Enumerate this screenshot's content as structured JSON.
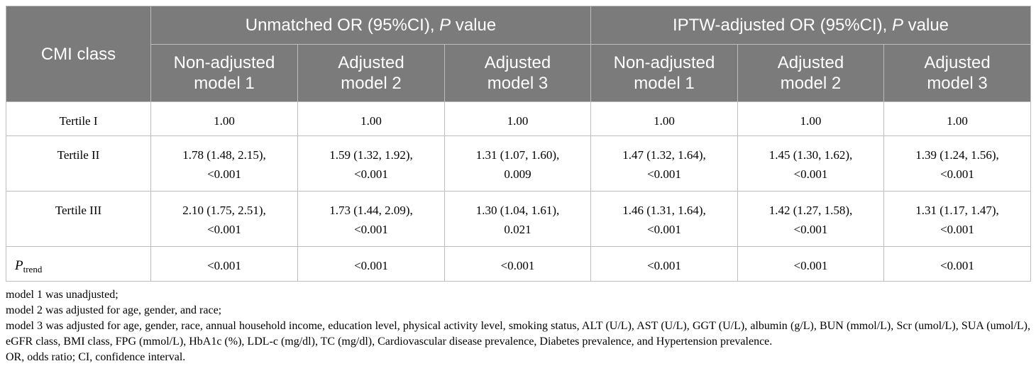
{
  "table": {
    "row_header": "CMI class",
    "groups": [
      {
        "prefix": "Unmatched OR (95%CI), ",
        "italic": "P",
        "suffix": " value"
      },
      {
        "prefix": "IPTW-adjusted OR (95%CI), ",
        "italic": "P",
        "suffix": " value"
      }
    ],
    "columns": [
      {
        "line1": "Non-adjusted",
        "line2": "model 1"
      },
      {
        "line1": "Adjusted",
        "line2": "model 2"
      },
      {
        "line1": "Adjusted",
        "line2": "model 3"
      },
      {
        "line1": "Non-adjusted",
        "line2": "model 1"
      },
      {
        "line1": "Adjusted",
        "line2": "model 2"
      },
      {
        "line1": "Adjusted",
        "line2": "model 3"
      }
    ],
    "rows": [
      {
        "label": "Tertile I",
        "cells": [
          "1.00",
          "1.00",
          "1.00",
          "1.00",
          "1.00",
          "1.00"
        ]
      },
      {
        "label": "Tertile II",
        "cells": [
          "1.78 (1.48, 2.15), <0.001",
          "1.59 (1.32, 1.92), <0.001",
          "1.31 (1.07, 1.60), 0.009",
          "1.47 (1.32, 1.64), <0.001",
          "1.45 (1.30, 1.62), <0.001",
          "1.39 (1.24, 1.56), <0.001"
        ]
      },
      {
        "label": "Tertile III",
        "cells": [
          "2.10 (1.75, 2.51), <0.001",
          "1.73 (1.44, 2.09), <0.001",
          "1.30 (1.04, 1.61), 0.021",
          "1.46 (1.31, 1.64), <0.001",
          "1.42 (1.27, 1.58), <0.001",
          "1.31 (1.17, 1.47), <0.001"
        ]
      }
    ],
    "ptrend": {
      "main": "P",
      "sub": "trend",
      "cells": [
        "<0.001",
        "<0.001",
        "<0.001",
        "<0.001",
        "<0.001",
        "<0.001"
      ]
    }
  },
  "notes": [
    "model 1 was unadjusted;",
    "model 2 was adjusted for age, gender, and race;",
    "model 3 was adjusted for age, gender, race, annual household income, education level, physical activity level, smoking status, ALT (U/L), AST (U/L), GGT (U/L), albumin (g/L), BUN (mmol/L), Scr (umol/L), SUA (umol/L), eGFR class, BMI class, FPG (mmol/L), HbA1c (%), LDL-c (mg/dl), TC (mg/dl), Cardiovascular disease prevalence, Diabetes prevalence, and Hypertension prevalence.",
    "OR, odds ratio; CI, confidence interval."
  ]
}
